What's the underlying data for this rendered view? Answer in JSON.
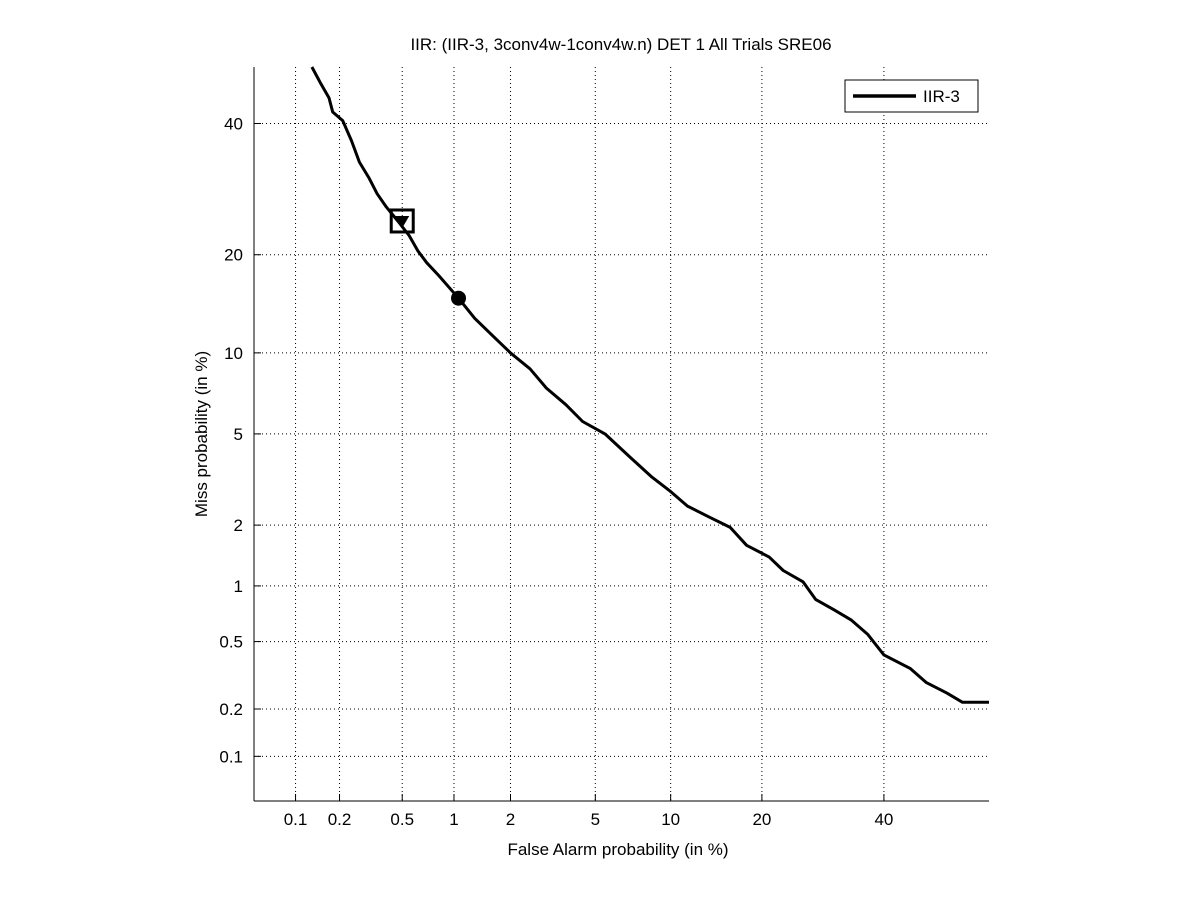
{
  "chart_data": {
    "type": "line",
    "scale": "normal-deviate (DET)",
    "title": "IIR: (IIR-3, 3conv4w-1conv4w.n) DET 1 All Trials SRE06",
    "xlabel": "False Alarm probability (in %)",
    "ylabel": "Miss probability (in %)",
    "xlim": [
      0.05,
      60
    ],
    "ylim": [
      0.05,
      50
    ],
    "xticks": [
      0.1,
      0.2,
      0.5,
      1,
      2,
      5,
      10,
      20,
      40
    ],
    "xtick_labels": [
      "0.1",
      "0.2",
      "0.5",
      "1",
      "2",
      "5",
      "10",
      "20",
      "40"
    ],
    "yticks": [
      0.1,
      0.2,
      0.5,
      1,
      2,
      5,
      10,
      20,
      40
    ],
    "ytick_labels": [
      "0.1",
      "0.2",
      "0.5",
      "1",
      "2",
      "5",
      "10",
      "20",
      "40"
    ],
    "grid": true,
    "legend": {
      "position": "top-right",
      "entries": [
        "IIR-3"
      ]
    },
    "series": [
      {
        "name": "IIR-3",
        "color": "#000000",
        "points": [
          [
            0.13,
            50
          ],
          [
            0.15,
            47
          ],
          [
            0.17,
            44.5
          ],
          [
            0.18,
            42
          ],
          [
            0.21,
            40.5
          ],
          [
            0.24,
            37
          ],
          [
            0.27,
            33.5
          ],
          [
            0.31,
            31
          ],
          [
            0.35,
            28.5
          ],
          [
            0.4,
            26.5
          ],
          [
            0.47,
            24.5
          ],
          [
            0.55,
            22.5
          ],
          [
            0.62,
            20.5
          ],
          [
            0.7,
            19
          ],
          [
            0.82,
            17.5
          ],
          [
            1.06,
            15
          ],
          [
            1.3,
            13
          ],
          [
            1.6,
            11.5
          ],
          [
            2.0,
            10
          ],
          [
            2.5,
            8.8
          ],
          [
            3.0,
            7.5
          ],
          [
            3.7,
            6.5
          ],
          [
            4.4,
            5.6
          ],
          [
            5.5,
            5.0
          ],
          [
            7.0,
            4.0
          ],
          [
            8.5,
            3.3
          ],
          [
            10.0,
            2.85
          ],
          [
            11.5,
            2.45
          ],
          [
            13.5,
            2.2
          ],
          [
            16.0,
            1.95
          ],
          [
            18.0,
            1.6
          ],
          [
            21.0,
            1.4
          ],
          [
            23.0,
            1.2
          ],
          [
            26.0,
            1.05
          ],
          [
            28.0,
            0.85
          ],
          [
            31.0,
            0.75
          ],
          [
            34.0,
            0.66
          ],
          [
            37.0,
            0.55
          ],
          [
            40.0,
            0.42
          ],
          [
            45.0,
            0.35
          ],
          [
            48.0,
            0.29
          ],
          [
            52.0,
            0.25
          ],
          [
            55.0,
            0.22
          ],
          [
            60.0,
            0.22
          ]
        ]
      }
    ],
    "markers": [
      {
        "shape": "square-with-triangle",
        "x": 0.5,
        "y": 24.5
      },
      {
        "shape": "filled-circle",
        "x": 1.06,
        "y": 15
      }
    ]
  }
}
